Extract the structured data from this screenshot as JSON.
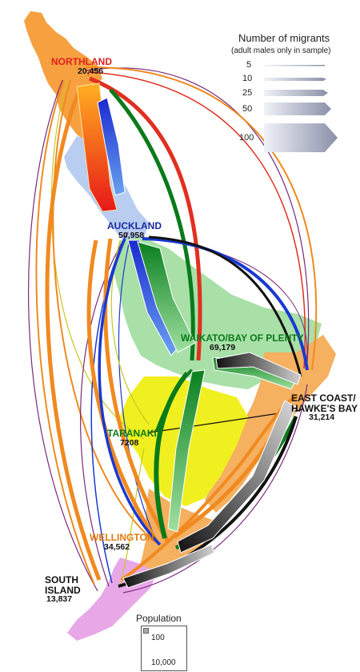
{
  "legend": {
    "title": "Number of migrants",
    "subtitle": "(adult males only in sample)",
    "values": [
      "5",
      "10",
      "25",
      "50",
      "100"
    ]
  },
  "population_legend": {
    "title": "Population",
    "small_value": "100",
    "large_value": "10,000"
  },
  "regions": [
    {
      "name": "NORTHLAND",
      "population": "20,456",
      "color": "#e02020"
    },
    {
      "name": "AUCKLAND",
      "population": "50,958",
      "color": "#1a2aa0"
    },
    {
      "name": "WAIKATO/BAY OF PLENTY",
      "population": "69,179",
      "color": "#0a7a1a"
    },
    {
      "name": "EAST COAST/",
      "name2": "HAWKE'S BAY",
      "population": "31,214",
      "color": "#111111"
    },
    {
      "name": "TARANAKI",
      "population": "7208",
      "color": "#0a7a1a"
    },
    {
      "name": "WELLINGTON",
      "population": "34,562",
      "color": "#e07a10"
    },
    {
      "name": "SOUTH",
      "name2": "ISLAND",
      "population": "13,837",
      "color": "#111111"
    }
  ],
  "region_fills": {
    "northland": "#f7a040",
    "auckland": "#b8cdf0",
    "waikato": "#a8e0a8",
    "east_coast": "#f5b060",
    "taranaki": "#f0f020",
    "wellington": "#f5b060",
    "south_island": "#e8a8e8"
  },
  "flow_colors": {
    "from_northland": "#e03020",
    "from_auckland": "#1a3ad0",
    "from_waikato": "#1a9a2a",
    "from_east_coast": "#222222",
    "from_taranaki": "#c8c820",
    "from_wellington": "#f08a20",
    "from_south_island": "#7a2a7a"
  }
}
